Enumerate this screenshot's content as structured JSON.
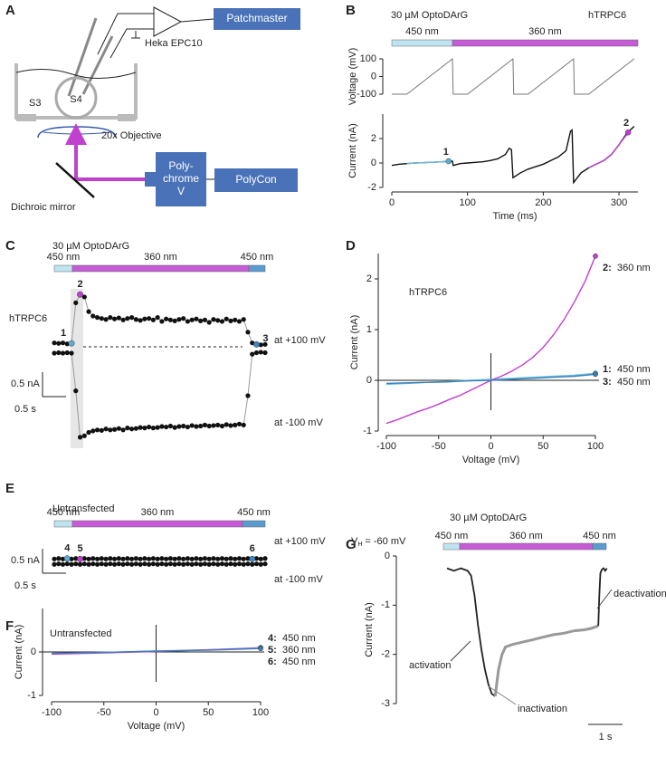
{
  "panel_labels": [
    "A",
    "B",
    "C",
    "D",
    "E",
    "F",
    "G"
  ],
  "setup": {
    "software": "Patchmaster",
    "amplifier": "Heka EPC10",
    "chamber_left": "S3",
    "chamber_center": "S4",
    "objective": "20x Objective",
    "light_source": [
      "Poly-",
      "chrome",
      "V"
    ],
    "controller": "PolyCon",
    "mirror": "Dichroic mirror"
  },
  "chart_data": [
    {
      "type": "line",
      "title": "30 µM OptoDArG",
      "annotation": "hTRPC6",
      "light": [
        {
          "label": "450 nm",
          "color": "#bfe3f1",
          "label_color": "#5aafd8"
        },
        {
          "label": "360 nm",
          "color": "#c65bd6",
          "label_color": "#c04fd4"
        }
      ],
      "ylabel": "Voltage (mV)",
      "xlim": [
        0,
        325
      ],
      "ylim": [
        -100,
        100
      ],
      "yticks": [
        100,
        0,
        -100
      ],
      "series": [
        {
          "color": "#777777",
          "x": [
            0,
            20,
            80,
            81,
            100,
            160,
            161,
            180,
            240,
            241,
            260,
            320
          ],
          "values": [
            -100,
            -100,
            100,
            -100,
            -100,
            100,
            -100,
            -100,
            100,
            -100,
            -100,
            100
          ]
        }
      ]
    },
    {
      "type": "line",
      "ylabel": "Current (nA)",
      "xlabel": "Time (ms)",
      "xlim": [
        0,
        325
      ],
      "ylim": [
        -2,
        4
      ],
      "yticks": [
        2,
        0,
        -2
      ],
      "xticks": [
        0,
        100,
        200,
        300
      ],
      "series": [
        {
          "color": "#111111",
          "x": [
            0,
            10,
            20,
            30,
            40,
            50,
            60,
            70,
            80,
            81,
            90,
            100,
            110,
            120,
            130,
            140,
            150,
            155,
            158,
            160,
            170,
            180,
            190,
            200,
            210,
            220,
            230,
            236,
            238,
            240,
            250,
            260,
            270,
            280,
            290,
            300,
            310,
            320
          ],
          "values": [
            -0.2,
            -0.1,
            -0.05,
            0,
            0.02,
            0.05,
            0.08,
            0.12,
            0.15,
            -0.2,
            -0.05,
            0,
            0.05,
            0.1,
            0.2,
            0.35,
            0.7,
            1.2,
            1.1,
            -1.2,
            -0.8,
            -0.5,
            -0.3,
            -0.1,
            0.2,
            0.5,
            1.0,
            2.6,
            2.7,
            -1.6,
            -0.8,
            -0.4,
            -0.1,
            0.2,
            0.7,
            1.5,
            2.4,
            3.0
          ]
        },
        {
          "color": "#6cc0e0",
          "x": [
            20,
            30,
            40,
            50,
            60,
            70,
            75
          ],
          "values": [
            -0.05,
            0,
            0.02,
            0.05,
            0.08,
            0.12,
            0.15
          ]
        },
        {
          "color": "#c040d0",
          "x": [
            260,
            270,
            280,
            290,
            300,
            310,
            312
          ],
          "values": [
            -0.4,
            -0.1,
            0.2,
            0.7,
            1.5,
            2.3,
            2.5
          ]
        }
      ],
      "markers": [
        {
          "label": "1",
          "color": "#5aafd8"
        },
        {
          "label": "2",
          "color": "#c040d0"
        }
      ]
    },
    {
      "type": "dot",
      "title": "30 µM OptoDArG",
      "annotation": "hTRPC6",
      "light": [
        {
          "label": "450 nm",
          "color": "#bfe3f1",
          "label_color": "#5aafd8"
        },
        {
          "label": "360 nm",
          "color": "#c65bd6",
          "label_color": "#c04fd4"
        },
        {
          "label": "450 nm",
          "color": "#5a9bd0",
          "label_color": "#3f86c0"
        }
      ],
      "series": [
        {
          "name": "at +100 mV",
          "color": "#111111",
          "values": [
            0.08,
            0.07,
            0.08,
            0.06,
            0.07,
            0.9,
            1.07,
            1.02,
            0.72,
            0.63,
            0.6,
            0.58,
            0.56,
            0.6,
            0.57,
            0.59,
            0.55,
            0.58,
            0.6,
            0.56,
            0.54,
            0.57,
            0.58,
            0.55,
            0.6,
            0.52,
            0.57,
            0.55,
            0.53,
            0.56,
            0.58,
            0.52,
            0.55,
            0.57,
            0.53,
            0.55,
            0.5,
            0.56,
            0.54,
            0.52,
            0.57,
            0.53,
            0.55,
            0.52,
            0.56,
            0.3,
            0.08,
            0.05,
            0.04,
            0.05
          ]
        },
        {
          "name": "at -100 mV",
          "color": "#111111",
          "values": [
            -0.13,
            -0.12,
            -0.13,
            -0.12,
            -0.13,
            -0.9,
            -1.85,
            -1.82,
            -1.75,
            -1.72,
            -1.7,
            -1.71,
            -1.68,
            -1.7,
            -1.69,
            -1.67,
            -1.7,
            -1.66,
            -1.68,
            -1.67,
            -1.65,
            -1.66,
            -1.64,
            -1.66,
            -1.65,
            -1.63,
            -1.64,
            -1.62,
            -1.65,
            -1.63,
            -1.62,
            -1.64,
            -1.61,
            -1.63,
            -1.62,
            -1.6,
            -1.62,
            -1.61,
            -1.6,
            -1.62,
            -1.59,
            -1.61,
            -1.6,
            -1.58,
            -1.6,
            -1.0,
            -0.15,
            -0.12,
            -0.11,
            -0.12
          ]
        }
      ],
      "markers": [
        {
          "label": "1",
          "color": "#5aafd8"
        },
        {
          "label": "2",
          "color": "#c040d0"
        },
        {
          "label": "3",
          "color": "#3f86c0"
        }
      ],
      "scalebar": {
        "y_value": 0.5,
        "y_label": "0.5 nA",
        "x_value": 0.5,
        "x_label": "0.5 s"
      }
    },
    {
      "type": "line",
      "annotation": "hTRPC6",
      "xlabel": "Voltage (mV)",
      "ylabel": "Current (nA)",
      "xlim": [
        -100,
        100
      ],
      "ylim": [
        -1,
        2.5
      ],
      "xticks": [
        -100,
        -50,
        0,
        50,
        100
      ],
      "yticks": [
        -1,
        0,
        1,
        2
      ],
      "x": [
        -100,
        -90,
        -80,
        -70,
        -60,
        -50,
        -40,
        -30,
        -20,
        -10,
        0,
        10,
        20,
        30,
        40,
        50,
        60,
        70,
        80,
        90,
        100
      ],
      "series": [
        {
          "id": "1:",
          "name": "450 nm",
          "color": "#6cc0e0",
          "values": [
            -0.08,
            -0.07,
            -0.06,
            -0.05,
            -0.04,
            -0.03,
            -0.02,
            -0.01,
            0,
            0.01,
            0.02,
            0.03,
            0.04,
            0.05,
            0.06,
            0.07,
            0.08,
            0.09,
            0.1,
            0.12,
            0.14
          ]
        },
        {
          "id": "2:",
          "name": "360 nm",
          "color": "#c040d0",
          "values": [
            -0.85,
            -0.78,
            -0.7,
            -0.62,
            -0.55,
            -0.47,
            -0.38,
            -0.3,
            -0.2,
            -0.1,
            0,
            0.08,
            0.18,
            0.3,
            0.45,
            0.65,
            0.9,
            1.2,
            1.55,
            1.95,
            2.45
          ]
        },
        {
          "id": "3:",
          "name": "450 nm",
          "color": "#3c7fb8",
          "values": [
            -0.06,
            -0.055,
            -0.05,
            -0.045,
            -0.04,
            -0.035,
            -0.03,
            -0.02,
            -0.01,
            -0.005,
            0,
            0.01,
            0.02,
            0.03,
            0.04,
            0.05,
            0.06,
            0.07,
            0.08,
            0.1,
            0.12
          ]
        }
      ]
    },
    {
      "type": "dot",
      "title": "Untransfected",
      "light": [
        {
          "label": "450 nm",
          "color": "#bfe3f1",
          "label_color": "#5aafd8"
        },
        {
          "label": "360 nm",
          "color": "#c65bd6",
          "label_color": "#c04fd4"
        },
        {
          "label": "450 nm",
          "color": "#5a9bd0",
          "label_color": "#3f86c0"
        }
      ],
      "series": [
        {
          "name": "at +100 mV",
          "color": "#111111",
          "values": [
            0.05,
            0.06,
            0.05,
            0.06,
            0.05,
            0.06,
            0.05,
            0.06,
            0.05,
            0.06,
            0.05,
            0.06,
            0.05,
            0.06,
            0.05,
            0.06,
            0.05,
            0.06,
            0.05,
            0.06,
            0.05,
            0.06,
            0.05,
            0.06,
            0.05,
            0.06,
            0.05,
            0.06,
            0.05,
            0.06,
            0.05,
            0.06,
            0.05,
            0.06,
            0.05,
            0.06,
            0.05,
            0.06,
            0.05,
            0.06,
            0.05,
            0.06,
            0.05,
            0.06,
            0.05,
            0.06,
            0.05,
            0.06,
            0.05,
            0.06
          ]
        },
        {
          "name": "at -100 mV",
          "color": "#111111",
          "values": [
            -0.06,
            -0.05,
            -0.06,
            -0.05,
            -0.06,
            -0.05,
            -0.06,
            -0.05,
            -0.06,
            -0.05,
            -0.06,
            -0.05,
            -0.06,
            -0.05,
            -0.06,
            -0.05,
            -0.06,
            -0.05,
            -0.06,
            -0.05,
            -0.06,
            -0.05,
            -0.06,
            -0.05,
            -0.06,
            -0.05,
            -0.06,
            -0.05,
            -0.06,
            -0.05,
            -0.06,
            -0.05,
            -0.06,
            -0.05,
            -0.06,
            -0.05,
            -0.06,
            -0.05,
            -0.06,
            -0.05,
            -0.06,
            -0.05,
            -0.06,
            -0.05,
            -0.06,
            -0.05,
            -0.06,
            -0.05,
            -0.06,
            -0.05
          ]
        }
      ],
      "markers": [
        {
          "label": "4",
          "color": "#5aafd8"
        },
        {
          "label": "5",
          "color": "#c040d0"
        },
        {
          "label": "6",
          "color": "#3f86c0"
        }
      ],
      "scalebar": {
        "y_value": 0.5,
        "y_label": "0.5 nA",
        "x_value": 0.5,
        "x_label": "0.5 s"
      }
    },
    {
      "type": "line",
      "title": "Untransfected",
      "xlabel": "Voltage (mV)",
      "ylabel": "Current (nA)",
      "xlim": [
        -100,
        100
      ],
      "ylim": [
        -1,
        1
      ],
      "xticks": [
        -100,
        -50,
        0,
        50,
        100
      ],
      "yticks": [
        -1,
        0
      ],
      "x": [
        -100,
        -50,
        0,
        50,
        100
      ],
      "series": [
        {
          "id": "4:",
          "name": "450 nm",
          "color": "#6cc0e0",
          "values": [
            -0.04,
            -0.01,
            0.02,
            0.05,
            0.1
          ]
        },
        {
          "id": "5:",
          "name": "360 nm",
          "color": "#c040d0",
          "values": [
            -0.05,
            -0.02,
            0.01,
            0.05,
            0.09
          ]
        },
        {
          "id": "6:",
          "name": "450 nm",
          "color": "#3c7fb8",
          "values": [
            -0.03,
            -0.01,
            0.02,
            0.04,
            0.08
          ]
        }
      ]
    },
    {
      "type": "line",
      "title": "30 µM OptoDArG",
      "holding": {
        "symbol": "V",
        "subscript": "H",
        "text": "= -60 mV"
      },
      "light": [
        {
          "label": "450 nm",
          "color": "#bfe3f1",
          "label_color": "#5aafd8"
        },
        {
          "label": "360 nm",
          "color": "#c65bd6",
          "label_color": "#c04fd4"
        },
        {
          "label": "450 nm",
          "color": "#5a9bd0",
          "label_color": "#3f86c0"
        }
      ],
      "ylabel": "Current (nA)",
      "ylim": [
        -3,
        0
      ],
      "yticks": [
        0,
        -1,
        -2,
        -3
      ],
      "series": [
        {
          "color": "#222222",
          "x": [
            0,
            0.2,
            0.4,
            0.6,
            0.7,
            0.8,
            0.9,
            1.0,
            1.1,
            1.2,
            1.3,
            1.4
          ],
          "values": [
            -0.25,
            -0.3,
            -0.25,
            -0.3,
            -0.4,
            -0.8,
            -1.4,
            -1.9,
            -2.3,
            -2.6,
            -2.8,
            -2.85
          ]
        },
        {
          "color": "#999999",
          "x": [
            1.4,
            1.5,
            1.6,
            1.7,
            1.9,
            2.2,
            2.5,
            2.8,
            3.1,
            3.4,
            3.7,
            4.0,
            4.2,
            4.4
          ],
          "values": [
            -2.85,
            -2.3,
            -2.0,
            -1.85,
            -1.8,
            -1.75,
            -1.7,
            -1.65,
            -1.6,
            -1.57,
            -1.52,
            -1.5,
            -1.47,
            -1.42
          ]
        },
        {
          "color": "#222222",
          "x": [
            4.4,
            4.43,
            4.46,
            4.5,
            4.55,
            4.6,
            4.65
          ],
          "values": [
            -1.42,
            -0.8,
            -0.35,
            -0.28,
            -0.25,
            -0.3,
            -0.25
          ]
        }
      ],
      "annotations": [
        "activation",
        "inactivation",
        "deactivation"
      ],
      "scalebar": {
        "x_value": 1,
        "x_label": "1 s"
      }
    }
  ]
}
